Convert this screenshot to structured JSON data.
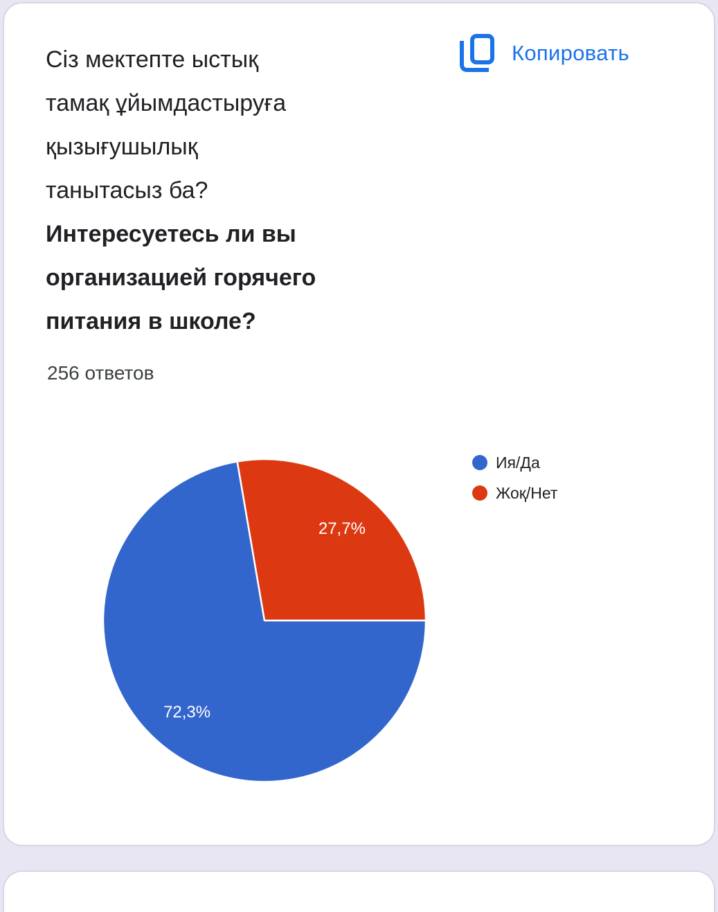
{
  "theme": {
    "page_background": "#e8e6f2",
    "card_background": "#ffffff",
    "card_border": "#d8d5e6",
    "text_primary": "#202124",
    "text_secondary": "#3c4043",
    "accent_blue": "#1a73e8"
  },
  "card": {
    "question": {
      "kk_lines": [
        "Сіз мектепте ыстық",
        "тамақ ұйымдастыруға",
        "қызығушылық",
        "танытасыз ба?"
      ],
      "ru_lines": [
        "Интересуетесь ли вы",
        "организацией горячего",
        "питания в школе?"
      ]
    },
    "responses_count": "256 ответов",
    "copy_button": {
      "label": "Копировать",
      "icon": "copy-icon"
    }
  },
  "chart_data": {
    "type": "pie",
    "title": "Сіз мектепте ыстық тамақ ұйымдастыруға қызығушылық танытасыз ба? Интересуетесь ли вы организацией горячего питания в школе?",
    "total_responses": 256,
    "categories": [
      "Ия/Да",
      "Жоқ/Нет"
    ],
    "values": [
      72.3,
      27.7
    ],
    "value_labels": [
      "72,3%",
      "27,7%"
    ],
    "colors": [
      "#3366cc",
      "#dc3912"
    ],
    "slice_label_color": "#ffffff",
    "legend_position": "right",
    "start_angle_deg_from_top_clockwise": 90,
    "direction": "clockwise"
  }
}
